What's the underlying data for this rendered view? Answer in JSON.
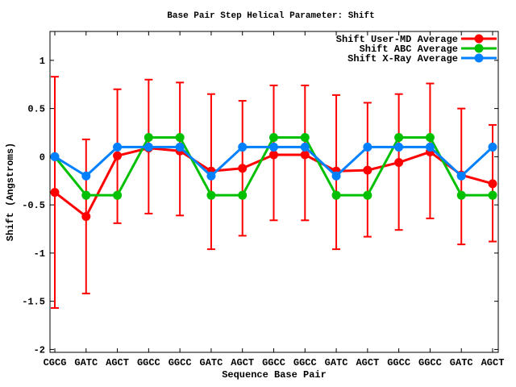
{
  "chart_data": {
    "type": "line",
    "title": "Base Pair Step Helical Parameter: Shift",
    "xlabel": "Sequence Base Pair",
    "ylabel": "Shift (Angstroms)",
    "categories": [
      "CGCG",
      "GATC",
      "AGCT",
      "GGCC",
      "GGCC",
      "GATC",
      "AGCT",
      "GGCC",
      "GGCC",
      "GATC",
      "AGCT",
      "GGCC",
      "GGCC",
      "GATC",
      "AGCT"
    ],
    "y_ticks": [
      1,
      0.5,
      0,
      -0.5,
      -1,
      -1.5,
      -2
    ],
    "y_tick_labels": [
      "1",
      "0.5",
      "0",
      "-0.5",
      "-1",
      "-1.5",
      "-2"
    ],
    "ylim": [
      -2.03,
      1.3
    ],
    "grid": false,
    "legend_position": "top-right-inside",
    "background": "#ffffff",
    "axis_color": "#000000",
    "series": [
      {
        "name": "Shift User-MD Average",
        "color": "#ff0000",
        "marker": "circle",
        "values": [
          -0.37,
          -0.62,
          0.01,
          0.09,
          0.06,
          -0.15,
          -0.12,
          0.02,
          0.02,
          -0.15,
          -0.14,
          -0.06,
          0.05,
          -0.19,
          -0.28
        ],
        "error_top": [
          0.83,
          0.18,
          0.7,
          0.8,
          0.77,
          0.65,
          0.58,
          0.74,
          0.74,
          0.64,
          0.56,
          0.65,
          0.76,
          0.5,
          0.33
        ],
        "error_bottom": [
          -1.57,
          -1.42,
          -0.69,
          -0.59,
          -0.61,
          -0.96,
          -0.82,
          -0.66,
          -0.66,
          -0.96,
          -0.83,
          -0.76,
          -0.64,
          -0.91,
          -0.88
        ]
      },
      {
        "name": "Shift ABC Average",
        "color": "#00c000",
        "marker": "circle",
        "values": [
          0.0,
          -0.4,
          -0.4,
          0.2,
          0.2,
          -0.4,
          -0.4,
          0.2,
          0.2,
          -0.4,
          -0.4,
          0.2,
          0.2,
          -0.4,
          -0.4
        ]
      },
      {
        "name": "Shift X-Ray Average",
        "color": "#0080ff",
        "marker": "circle",
        "values": [
          0.0,
          -0.2,
          0.1,
          0.1,
          0.1,
          -0.2,
          0.1,
          0.1,
          0.1,
          -0.2,
          0.1,
          0.1,
          0.1,
          -0.2,
          0.1
        ]
      }
    ]
  }
}
